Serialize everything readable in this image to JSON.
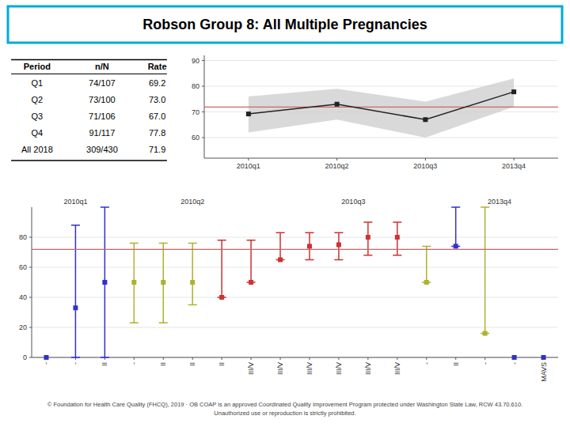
{
  "chart_data": [
    {
      "type": "table",
      "title": "Robson Group 8: All Multiple Pregnancies",
      "color": "#00aadd",
      "columns": [
        "Period",
        "n/N",
        "Rate"
      ],
      "rows": [
        [
          "Q1",
          "74/107",
          "69.2"
        ],
        [
          "Q2",
          "73/100",
          "73.0"
        ],
        [
          "Q3",
          "71/106",
          "67.0"
        ],
        [
          "Q4",
          "91/117",
          "77.8"
        ],
        [
          "All 2018",
          "309/430",
          "71.9"
        ]
      ]
    },
    {
      "type": "line",
      "categories": [
        "2010q1",
        "2010q2",
        "2010q3",
        "2013q4"
      ],
      "series": [
        {
          "type": "area",
          "low": [
            62,
            67,
            60,
            72
          ],
          "high": [
            76,
            79,
            74,
            83
          ],
          "color": "#cccccc"
        },
        {
          "type": "hline",
          "value": 71.9,
          "color": "#cc6666"
        },
        {
          "type": "line",
          "values": [
            69.2,
            73.0,
            67.0,
            77.8
          ],
          "color": "#222222",
          "marker": "square"
        }
      ],
      "ylim": [
        52,
        92
      ],
      "yticks": [
        60,
        70,
        80,
        90
      ],
      "grid": true
    },
    {
      "type": "errorbar",
      "categories": [
        "-",
        "-",
        "II",
        "-",
        "II",
        "II",
        "II",
        "III/V",
        "III/V",
        "III/V",
        "III/V",
        "III/V",
        "III/V",
        "-",
        "II",
        "-",
        "-",
        "MAVS"
      ],
      "series": [
        {
          "type": "errorbar",
          "values": [
            0,
            33,
            50,
            50,
            50,
            50,
            40,
            50,
            65,
            74,
            75,
            80,
            80,
            50,
            74,
            16,
            0,
            0
          ],
          "low": [
            0,
            0,
            0,
            23,
            23,
            35,
            40,
            50,
            65,
            65,
            65,
            68,
            68,
            50,
            74,
            16,
            0,
            0
          ],
          "high": [
            0,
            88,
            100,
            76,
            76,
            76,
            78,
            78,
            83,
            83,
            83,
            90,
            90,
            74,
            100,
            100,
            0,
            0
          ],
          "colors": [
            "#3030d0",
            "#3030d0",
            "#3030d0",
            "#b0b030",
            "#b0b030",
            "#b0b030",
            "#cc3333",
            "#cc3333",
            "#cc3333",
            "#cc3333",
            "#cc3333",
            "#cc3333",
            "#cc3333",
            "#b0b030",
            "#3030d0",
            "#b0b030",
            "#3030d0",
            "#3030d0"
          ],
          "marker": "square"
        },
        {
          "type": "hline",
          "value": 71.9,
          "color": "#cc6666"
        }
      ],
      "ylim": [
        0,
        100
      ],
      "yticks": [
        0,
        20,
        40,
        60,
        80
      ],
      "grid": true,
      "annotations": [
        {
          "x": 1.0,
          "label": "2010q1"
        },
        {
          "x": 5.0,
          "label": "2010q2"
        },
        {
          "x": 10.5,
          "label": "2010q3"
        },
        {
          "x": 15.5,
          "label": "2013q4"
        }
      ],
      "note": "© Foundation for Health Care Quality (FHCQ), 2019  ·  OB COAP is an approved Coordinated Quality Improvement Program protected under Washington  State Law, RCW 43.70.610.\nUnauthorized use or reproduction is strictly prohibited."
    }
  ]
}
